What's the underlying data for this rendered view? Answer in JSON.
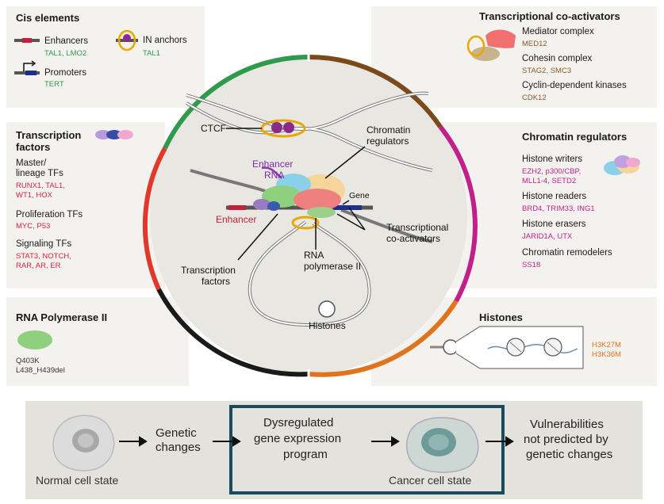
{
  "cis": {
    "title": "Cis elements",
    "enhancers": "Enhancers",
    "enhancers_ex": "TAL1, LMO2",
    "promoters": "Promoters",
    "promoters_ex": "TERT",
    "in_anchors": "IN anchors",
    "in_anchors_ex": "TAL1"
  },
  "tfs": {
    "title_l1": "Transcription",
    "title_l2": "factors",
    "master_l1": "Master/",
    "master_l2": "lineage TFs",
    "master_ex_l1": "RUNX1, TAL1,",
    "master_ex_l2": "WT1, HOX",
    "prolif": "Proliferation TFs",
    "prolif_ex": "MYC, P53",
    "signal": "Signaling TFs",
    "signal_ex_l1": "STAT3, NOTCH,",
    "signal_ex_l2": "RAR, AR, ER"
  },
  "polII": {
    "title": "RNA Polymerase II",
    "mut1": "Q403K",
    "mut2": "L438_H439del"
  },
  "coact": {
    "title": "Transcriptional co-activators",
    "mediator": "Mediator complex",
    "mediator_ex": "MED12",
    "cohesin": "Cohesin complex",
    "cohesin_ex": "STAG2, SMC3",
    "cdk": "Cyclin-dependent kinases",
    "cdk_ex": "CDK12"
  },
  "chromreg": {
    "title": "Chromatin regulators",
    "writers": "Histone writers",
    "writers_ex_l1": "EZH2, p300/CBP,",
    "writers_ex_l2": "MLL1-4, SETD2",
    "readers": "Histone readers",
    "readers_ex": "BRD4, TRIM33, ING1",
    "erasers": "Histone erasers",
    "erasers_ex": "JARID1A, UTX",
    "remodelers": "Chromatin remodelers",
    "remodelers_ex": "SS18"
  },
  "histones": {
    "title": "Histones",
    "mut1": "H3K27M",
    "mut2": "H3K36M"
  },
  "center": {
    "ctcf": "CTCF",
    "chromreg_l1": "Chromatin",
    "chromreg_l2": "regulators",
    "enh_rna_l1": "Enhancer",
    "enh_rna_l2": "RNA",
    "gene": "Gene",
    "enhancer": "Enhancer",
    "coact_l1": "Transcriptional",
    "coact_l2": "co-activators",
    "tf_l1": "Transcription",
    "tf_l2": "factors",
    "polii_l1": "RNA",
    "polii_l2": "polymerase II",
    "histones": "Histones"
  },
  "flow": {
    "normal": "Normal cell state",
    "genetic_l1": "Genetic",
    "genetic_l2": "changes",
    "dys_l1": "Dysregulated",
    "dys_l2": "gene expression",
    "dys_l3": "program",
    "cancer": "Cancer cell state",
    "vuln_l1": "Vulnerabilities",
    "vuln_l2": "not predicted by",
    "vuln_l3": "genetic changes"
  },
  "colors": {
    "green": "#2e9b4c",
    "brown": "#7a4a1c",
    "magenta": "#c21f8a",
    "orange": "#e0741c",
    "black": "#1a1a1a",
    "red": "#e2372b",
    "teal_box": "#1a4a5e"
  }
}
